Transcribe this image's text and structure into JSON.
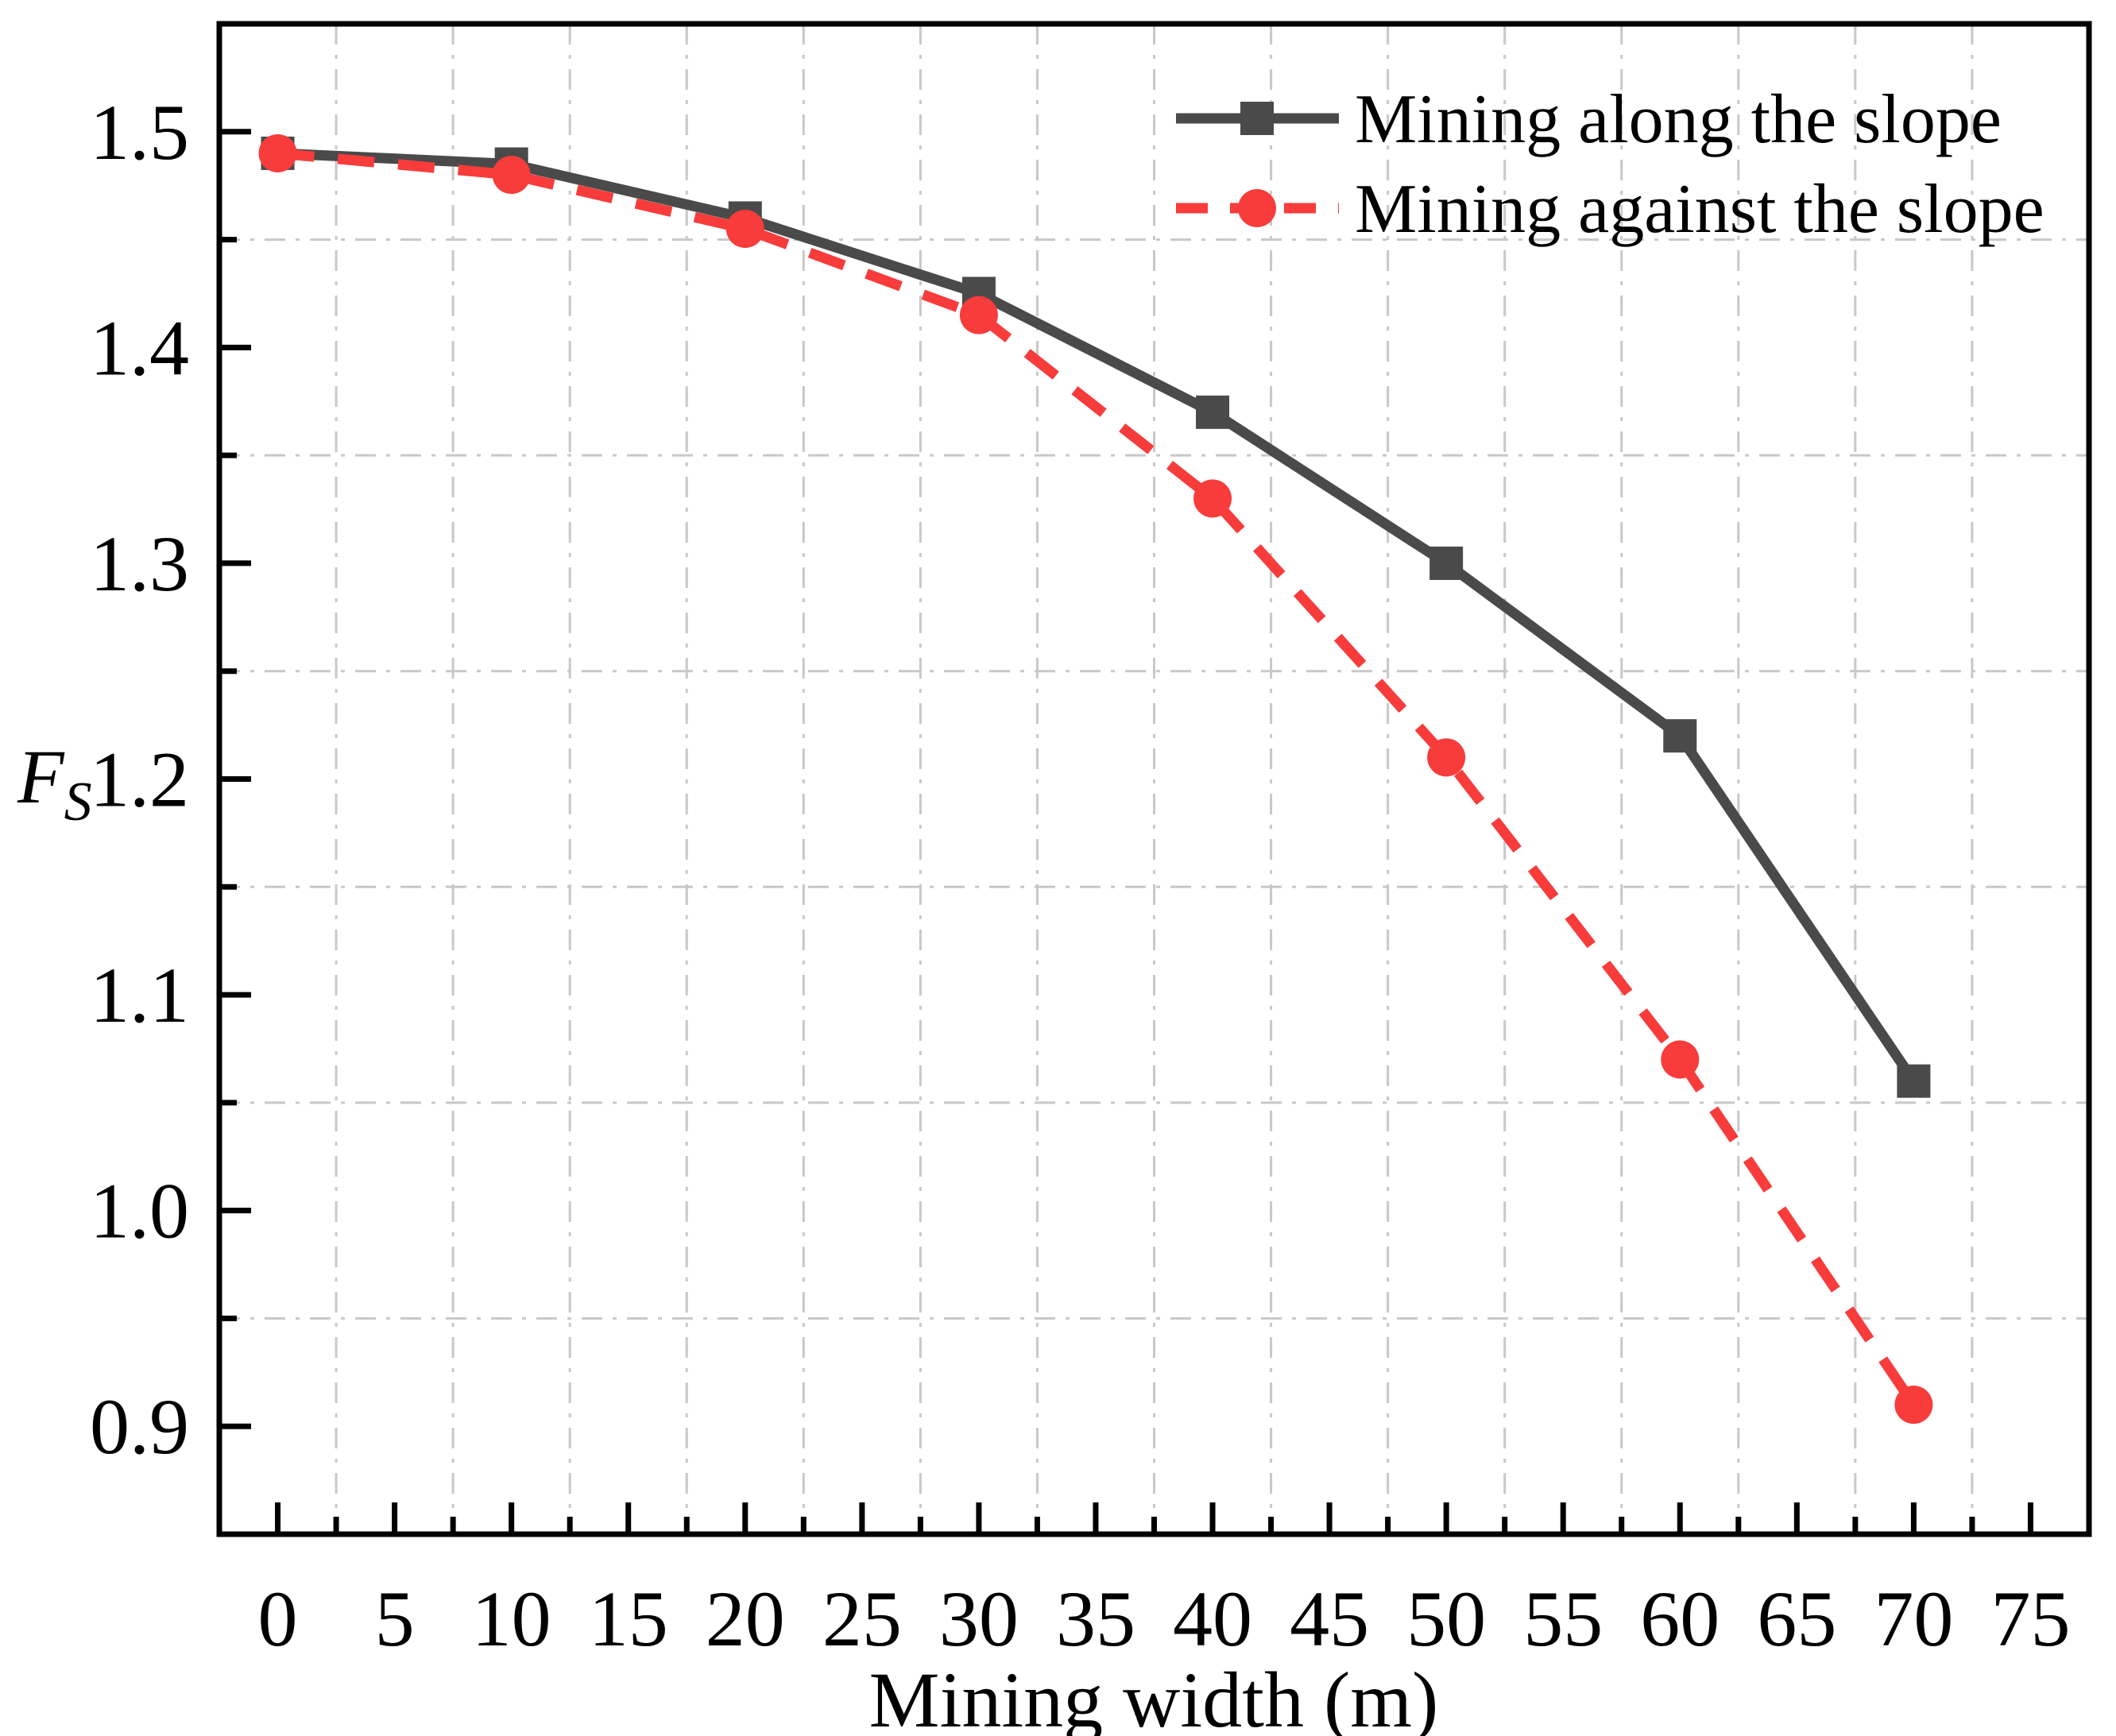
{
  "figure": {
    "background": "#ffffff"
  },
  "chart_data": {
    "type": "line",
    "title": "",
    "xlabel": "Mining width (m)",
    "ylabel": "F_S",
    "ylabel_letter": "F",
    "ylabel_subscript": "S",
    "x": [
      0,
      10,
      20,
      30,
      40,
      50,
      60,
      70
    ],
    "series": [
      {
        "name": "Mining along the slope",
        "marker": "square",
        "line_style": "solid",
        "color": "#4a4a4a",
        "values": [
          1.49,
          1.485,
          1.46,
          1.425,
          1.37,
          1.3,
          1.22,
          1.06
        ]
      },
      {
        "name": "Mining against the slope",
        "marker": "circle",
        "line_style": "dashed",
        "color": "#f83b3b",
        "values": [
          1.49,
          1.48,
          1.455,
          1.415,
          1.33,
          1.21,
          1.07,
          0.91
        ]
      }
    ],
    "xlim": [
      -2.5,
      77.5
    ],
    "ylim": [
      0.85,
      1.55
    ],
    "x_major_ticks": [
      0,
      5,
      10,
      15,
      20,
      25,
      30,
      35,
      40,
      45,
      50,
      55,
      60,
      65,
      70,
      75
    ],
    "x_minor_ticks": [
      2.5,
      7.5,
      12.5,
      17.5,
      22.5,
      27.5,
      32.5,
      37.5,
      42.5,
      47.5,
      52.5,
      57.5,
      62.5,
      67.5,
      72.5
    ],
    "y_major_tick_labels": [
      "0.9",
      "1.0",
      "1.1",
      "1.2",
      "1.3",
      "1.4",
      "1.5"
    ],
    "y_minor_ticks": [
      0.95,
      1.05,
      1.15,
      1.25,
      1.35,
      1.45
    ],
    "grid": "minor-only",
    "grid_color": "#c8c8c8",
    "axis_color": "#000000",
    "legend_position": "top-right"
  }
}
